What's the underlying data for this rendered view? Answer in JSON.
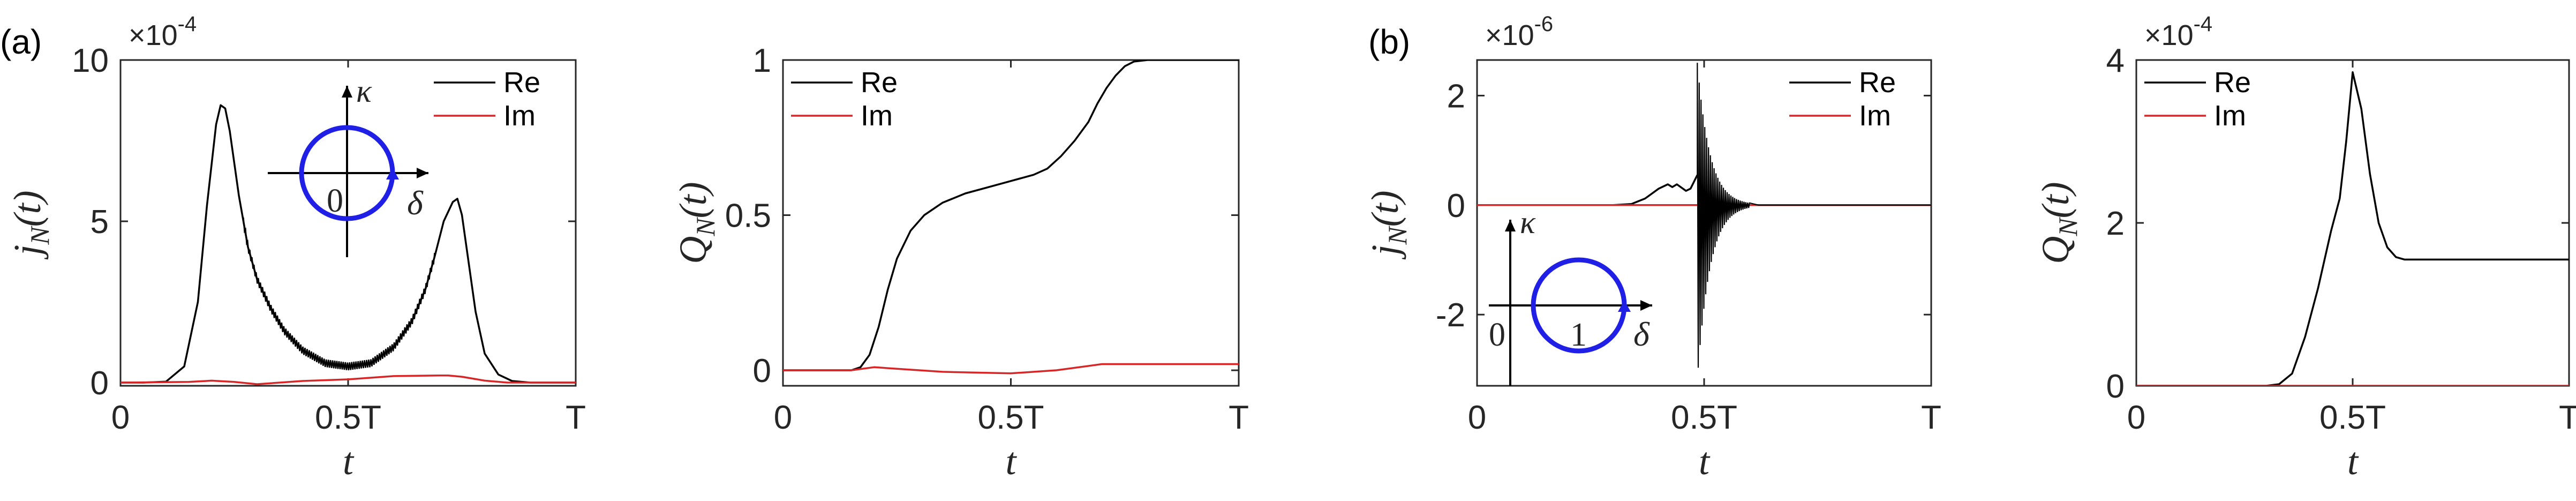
{
  "panel_labels": [
    "(a)",
    "(b)"
  ],
  "chart_data": [
    {
      "type": "line",
      "panel": "(a)",
      "ylabel_main": "j",
      "ylabel_sub": "N",
      "ylabel_arg": "(t)",
      "xlabel": "t",
      "multiplier": "×10",
      "multiplier_exp": "-4",
      "xticks": [
        0,
        0.5,
        1
      ],
      "xtick_labels": [
        "0",
        "0.5T",
        "T"
      ],
      "ylim": [
        -0.1,
        10
      ],
      "yticks": [
        0,
        5,
        10
      ],
      "ytick_labels": [
        "0",
        "5",
        "10"
      ],
      "legend": [
        "Re",
        "Im"
      ],
      "legend_position": "top-right",
      "inset": {
        "axis_label_v": "κ",
        "axis_label_h": "δ",
        "center_label": "0"
      },
      "series": [
        {
          "name": "Re",
          "color": "#000000",
          "x": [
            0,
            0.05,
            0.1,
            0.14,
            0.17,
            0.19,
            0.21,
            0.22,
            0.23,
            0.24,
            0.26,
            0.28,
            0.3,
            0.33,
            0.36,
            0.4,
            0.45,
            0.5,
            0.55,
            0.6,
            0.64,
            0.67,
            0.69,
            0.71,
            0.73,
            0.74,
            0.75,
            0.76,
            0.78,
            0.8,
            0.83,
            0.86,
            0.9,
            1
          ],
          "y": [
            0,
            0,
            0.03,
            0.5,
            2.5,
            5.5,
            8.0,
            8.6,
            8.5,
            7.8,
            5.8,
            4.2,
            3.2,
            2.3,
            1.6,
            1.0,
            0.6,
            0.5,
            0.6,
            1.1,
            1.9,
            2.9,
            3.9,
            5.0,
            5.6,
            5.7,
            5.2,
            4.2,
            2.2,
            0.9,
            0.25,
            0.05,
            0,
            0
          ]
        },
        {
          "name": "Im",
          "color": "#d62728",
          "x": [
            0,
            0.15,
            0.2,
            0.25,
            0.3,
            0.4,
            0.5,
            0.6,
            0.7,
            0.72,
            0.75,
            0.8,
            0.85,
            1
          ],
          "y": [
            0,
            0.02,
            0.06,
            0.02,
            -0.05,
            0.05,
            0.1,
            0.2,
            0.22,
            0.22,
            0.18,
            0.06,
            0,
            0
          ]
        }
      ]
    },
    {
      "type": "line",
      "panel": "(a)",
      "ylabel_main": "Q",
      "ylabel_sub": "N",
      "ylabel_arg": "(t)",
      "xlabel": "t",
      "xticks": [
        0,
        0.5,
        1
      ],
      "xtick_labels": [
        "0",
        "0.5T",
        "T"
      ],
      "ylim": [
        -0.05,
        1
      ],
      "yticks": [
        0,
        0.5,
        1
      ],
      "ytick_labels": [
        "0",
        "0.5",
        "1"
      ],
      "legend": [
        "Re",
        "Im"
      ],
      "legend_position": "top-left",
      "series": [
        {
          "name": "Re",
          "color": "#000000",
          "x": [
            0,
            0.15,
            0.17,
            0.19,
            0.21,
            0.23,
            0.25,
            0.28,
            0.31,
            0.35,
            0.4,
            0.45,
            0.5,
            0.55,
            0.58,
            0.61,
            0.64,
            0.67,
            0.69,
            0.71,
            0.73,
            0.75,
            0.77,
            0.8,
            0.85,
            1
          ],
          "y": [
            0,
            0,
            0.01,
            0.05,
            0.14,
            0.26,
            0.36,
            0.45,
            0.5,
            0.54,
            0.57,
            0.59,
            0.61,
            0.63,
            0.65,
            0.69,
            0.74,
            0.8,
            0.86,
            0.91,
            0.95,
            0.98,
            0.995,
            1.0,
            1.0,
            1.0
          ]
        },
        {
          "name": "Im",
          "color": "#d62728",
          "x": [
            0,
            0.15,
            0.2,
            0.25,
            0.35,
            0.5,
            0.6,
            0.7,
            0.8,
            1
          ],
          "y": [
            0,
            0,
            0.01,
            0.005,
            -0.005,
            -0.01,
            0.0,
            0.02,
            0.02,
            0.02
          ]
        }
      ]
    },
    {
      "type": "line",
      "panel": "(b)",
      "ylabel_main": "j",
      "ylabel_sub": "N",
      "ylabel_arg": "(t)",
      "xlabel": "t",
      "multiplier": "×10",
      "multiplier_exp": "-6",
      "xticks": [
        0,
        0.5,
        1
      ],
      "xtick_labels": [
        "0",
        "0.5T",
        "T"
      ],
      "ylim": [
        -3.3,
        2.65
      ],
      "yticks": [
        -2,
        0,
        2
      ],
      "ytick_labels": [
        "-2",
        "0",
        "2"
      ],
      "legend": [
        "Re",
        "Im"
      ],
      "legend_position": "top-right",
      "inset": {
        "axis_label_v": "κ",
        "axis_label_h": "δ",
        "origin_label": "0",
        "center_label": "1"
      },
      "oscillation": {
        "start": 0.485,
        "end": 0.6,
        "peak": 2.6,
        "trough": -3.2,
        "cycles": 28
      },
      "series": [
        {
          "name": "Re",
          "color": "#000000",
          "x": [
            0,
            0.3,
            0.34,
            0.37,
            0.4,
            0.42,
            0.43,
            0.44,
            0.45,
            0.46,
            0.47,
            0.485
          ],
          "y": [
            0,
            0,
            0.02,
            0.12,
            0.3,
            0.38,
            0.33,
            0.38,
            0.32,
            0.26,
            0.3,
            0.55
          ]
        },
        {
          "name": "Im",
          "color": "#d62728",
          "x": [
            0,
            1
          ],
          "y": [
            0,
            0
          ]
        }
      ]
    },
    {
      "type": "line",
      "panel": "(b)",
      "ylabel_main": "Q",
      "ylabel_sub": "N",
      "ylabel_arg": "(t)",
      "xlabel": "t",
      "multiplier": "×10",
      "multiplier_exp": "-4",
      "xticks": [
        0,
        0.5,
        1
      ],
      "xtick_labels": [
        "0",
        "0.5T",
        "T"
      ],
      "ylim": [
        0,
        4
      ],
      "yticks": [
        0,
        2,
        4
      ],
      "ytick_labels": [
        "0",
        "2",
        "4"
      ],
      "legend": [
        "Re",
        "Im"
      ],
      "legend_position": "top-left",
      "series": [
        {
          "name": "Re",
          "color": "#000000",
          "x": [
            0,
            0.3,
            0.33,
            0.36,
            0.39,
            0.42,
            0.45,
            0.47,
            0.485,
            0.5,
            0.52,
            0.54,
            0.56,
            0.58,
            0.6,
            0.62,
            0.65,
            0.7,
            0.8,
            1
          ],
          "y": [
            0,
            0,
            0.02,
            0.15,
            0.6,
            1.2,
            1.9,
            2.3,
            3.0,
            3.85,
            3.4,
            2.6,
            2.0,
            1.7,
            1.58,
            1.55,
            1.55,
            1.55,
            1.55,
            1.55
          ]
        },
        {
          "name": "Im",
          "color": "#d62728",
          "x": [
            0,
            1
          ],
          "y": [
            0,
            0
          ]
        }
      ]
    }
  ]
}
